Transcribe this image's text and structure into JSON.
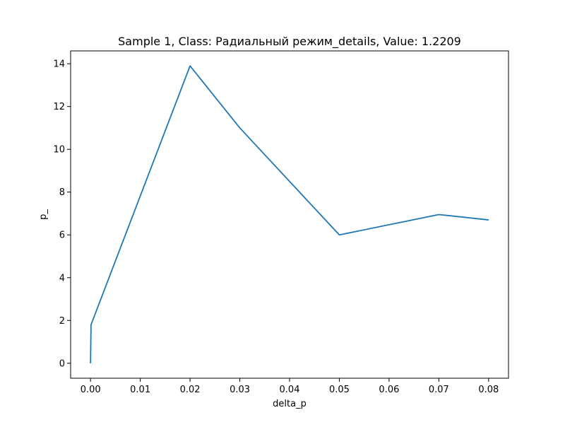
{
  "chart_data": {
    "type": "line",
    "title": "Sample 1, Class: Радиальный режим_details, Value: 1.2209",
    "xlabel": "delta_p",
    "ylabel": "p_",
    "x_ticks": [
      "0.00",
      "0.01",
      "0.02",
      "0.03",
      "0.04",
      "0.05",
      "0.06",
      "0.07",
      "0.08"
    ],
    "y_ticks": [
      "0",
      "2",
      "4",
      "6",
      "8",
      "10",
      "12",
      "14"
    ],
    "xlim": [
      -0.004,
      0.084
    ],
    "ylim": [
      -0.7,
      14.6
    ],
    "grid": false,
    "legend": "none",
    "series": [
      {
        "color": "#1f77b4",
        "x": [
          0.0,
          0.0001,
          0.02,
          0.03,
          0.05,
          0.07,
          0.08
        ],
        "y": [
          0.0,
          1.8,
          13.9,
          11.0,
          6.0,
          6.95,
          6.7
        ]
      }
    ]
  }
}
